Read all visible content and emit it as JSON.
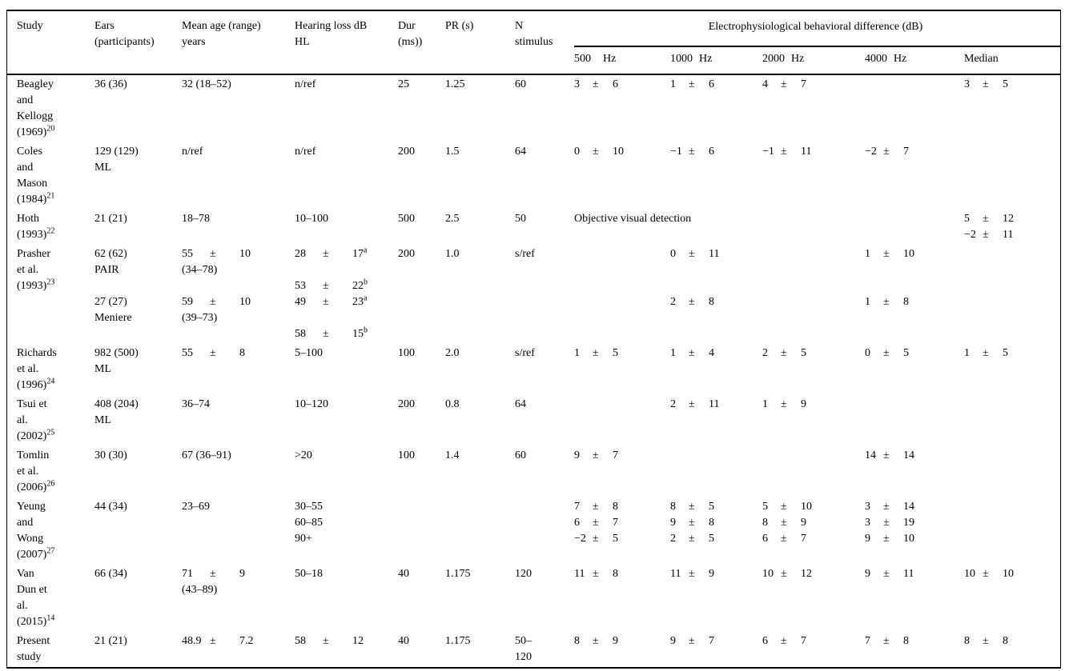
{
  "pm_sign": "±",
  "header": {
    "cols": [
      {
        "label": "Study"
      },
      {
        "label": "Ears\n(participants)"
      },
      {
        "label": "Mean age (range)\nyears"
      },
      {
        "label": "Hearing loss dB\nHL"
      },
      {
        "label": "Dur\n(ms))"
      },
      {
        "label": "PR (s)"
      },
      {
        "label": "N\nstimulus"
      }
    ],
    "group_label": "Electrophysiological behavioral difference (dB)",
    "sub_cols": [
      {
        "num": "500",
        "unit": "Hz"
      },
      {
        "num": "1000",
        "unit": "Hz"
      },
      {
        "num": "2000",
        "unit": "Hz"
      },
      {
        "num": "4000",
        "unit": "Hz"
      },
      {
        "label": "Median"
      }
    ]
  },
  "rows": [
    {
      "study": {
        "text": "Beagley\nand\nKellogg\n(1969)",
        "sup": "20"
      },
      "ears": [
        "36 (36)"
      ],
      "age": [
        "32 (18–52)"
      ],
      "hl": [
        "n/ref"
      ],
      "dur": [
        "25"
      ],
      "pr": [
        "1.25"
      ],
      "n": [
        "60"
      ],
      "f500": [
        {
          "v": "3",
          "s": "6"
        }
      ],
      "f1000": [
        {
          "v": "1",
          "s": "6"
        }
      ],
      "f2000": [
        {
          "v": "4",
          "s": "7"
        }
      ],
      "f4000": [],
      "median": [
        {
          "v": "3",
          "s": "5"
        }
      ]
    },
    {
      "study": {
        "text": "Coles\nand\nMason\n(1984)",
        "sup": "21"
      },
      "ears": [
        "129 (129)",
        "ML"
      ],
      "age": [
        "n/ref"
      ],
      "hl": [
        "n/ref"
      ],
      "dur": [
        "200"
      ],
      "pr": [
        "1.5"
      ],
      "n": [
        "64"
      ],
      "f500": [
        {
          "v": "0",
          "s": "10"
        }
      ],
      "f1000": [
        {
          "v": "−1",
          "s": "6"
        }
      ],
      "f2000": [
        {
          "v": "−1",
          "s": "11"
        }
      ],
      "f4000": [
        {
          "v": "−2",
          "s": "7"
        }
      ],
      "median": []
    },
    {
      "study": {
        "text": "Hoth\n(1993)",
        "sup": "22"
      },
      "ears": [
        "21 (21)"
      ],
      "age": [
        "18–78"
      ],
      "hl": [
        "10–100"
      ],
      "dur": [
        "500"
      ],
      "pr": [
        "2.5"
      ],
      "n": [
        "50"
      ],
      "electro_span": "Objective visual detection",
      "median": [
        {
          "v": "5",
          "s": "12"
        },
        {
          "v": "−2",
          "s": "11"
        }
      ]
    },
    {
      "study": {
        "text": "Prasher\net al.\n(1993)",
        "sup": "23"
      },
      "ears": [
        "62 (62)",
        "PAIR",
        "",
        "27 (27)",
        "Meniere"
      ],
      "age": [
        {
          "v": "55",
          "s": "10"
        },
        "(34–78)",
        "",
        {
          "v": "59",
          "s": "10"
        },
        "(39–73)"
      ],
      "hl": [
        {
          "v": "28",
          "s": "17",
          "sup": "a"
        },
        "",
        {
          "v": "53",
          "s": "22",
          "sup": "b"
        },
        {
          "v": "49",
          "s": "23",
          "sup": "a"
        },
        "",
        {
          "v": "58",
          "s": "15",
          "sup": "b"
        }
      ],
      "dur": [
        "200"
      ],
      "pr": [
        "1.0"
      ],
      "n": [
        "s/ref"
      ],
      "f500": [],
      "f1000": [
        {
          "v": "0",
          "s": "11"
        },
        "",
        "",
        {
          "v": "2",
          "s": "8"
        }
      ],
      "f2000": [],
      "f4000": [
        {
          "v": "1",
          "s": "10"
        },
        "",
        "",
        {
          "v": "1",
          "s": "8"
        }
      ],
      "median": []
    },
    {
      "study": {
        "text": "Richards\net al.\n(1996)",
        "sup": "24"
      },
      "ears": [
        "982 (500)",
        "ML"
      ],
      "age": [
        {
          "v": "55",
          "s": "8"
        }
      ],
      "hl": [
        "5–100"
      ],
      "dur": [
        "100"
      ],
      "pr": [
        "2.0"
      ],
      "n": [
        "s/ref"
      ],
      "f500": [
        {
          "v": "1",
          "s": "5"
        }
      ],
      "f1000": [
        {
          "v": "1",
          "s": "4"
        }
      ],
      "f2000": [
        {
          "v": "2",
          "s": "5"
        }
      ],
      "f4000": [
        {
          "v": "0",
          "s": "5"
        }
      ],
      "median": [
        {
          "v": "1",
          "s": "5"
        }
      ]
    },
    {
      "study": {
        "text": "Tsui et\nal.\n(2002)",
        "sup": "25"
      },
      "ears": [
        "408 (204)",
        "ML"
      ],
      "age": [
        "36–74"
      ],
      "hl": [
        "10–120"
      ],
      "dur": [
        "200"
      ],
      "pr": [
        "0.8"
      ],
      "n": [
        "64"
      ],
      "f500": [],
      "f1000": [
        {
          "v": "2",
          "s": "11"
        }
      ],
      "f2000": [
        {
          "v": "1",
          "s": "9"
        }
      ],
      "f4000": [],
      "median": []
    },
    {
      "study": {
        "text": "Tomlin\net al.\n(2006)",
        "sup": "26"
      },
      "ears": [
        "30 (30)"
      ],
      "age": [
        "67 (36–91)"
      ],
      "hl": [
        ">20"
      ],
      "dur": [
        "100"
      ],
      "pr": [
        "1.4"
      ],
      "n": [
        "60"
      ],
      "f500": [
        {
          "v": "9",
          "s": "7"
        }
      ],
      "f1000": [],
      "f2000": [],
      "f4000": [
        {
          "v": "14",
          "s": "14"
        }
      ],
      "median": []
    },
    {
      "study": {
        "text": "Yeung\nand\nWong\n(2007)",
        "sup": "27"
      },
      "ears": [
        "44 (34)"
      ],
      "age": [
        "23–69"
      ],
      "hl": [
        "30–55",
        "60–85",
        "90+"
      ],
      "dur": [],
      "pr": [],
      "n": [],
      "f500": [
        {
          "v": "7",
          "s": "8"
        },
        {
          "v": "6",
          "s": "7"
        },
        {
          "v": "−2",
          "s": "5"
        }
      ],
      "f1000": [
        {
          "v": "8",
          "s": "5"
        },
        {
          "v": "9",
          "s": "8"
        },
        {
          "v": "2",
          "s": "5"
        }
      ],
      "f2000": [
        {
          "v": "5",
          "s": "10"
        },
        {
          "v": "8",
          "s": "9"
        },
        {
          "v": "6",
          "s": "7"
        }
      ],
      "f4000": [
        {
          "v": "3",
          "s": "14"
        },
        {
          "v": "3",
          "s": "19"
        },
        {
          "v": "9",
          "s": "10"
        }
      ],
      "median": []
    },
    {
      "study": {
        "text": "Van\nDun et\nal.\n(2015)",
        "sup": "14"
      },
      "ears": [
        "66 (34)"
      ],
      "age": [
        {
          "v": "71",
          "s": "9"
        },
        "(43–89)"
      ],
      "hl": [
        "50–18"
      ],
      "dur": [
        "40"
      ],
      "pr": [
        "1.175"
      ],
      "n": [
        "120"
      ],
      "f500": [
        {
          "v": "11",
          "s": "8"
        }
      ],
      "f1000": [
        {
          "v": "11",
          "s": "9"
        }
      ],
      "f2000": [
        {
          "v": "10",
          "s": "12"
        }
      ],
      "f4000": [
        {
          "v": "9",
          "s": "11"
        }
      ],
      "median": [
        {
          "v": "10",
          "s": "10"
        }
      ]
    },
    {
      "study": {
        "text": "Present\nstudy"
      },
      "ears": [
        "21 (21)"
      ],
      "age": [
        {
          "v": "48.9",
          "s": "7.2"
        }
      ],
      "hl": [
        {
          "v": "58",
          "s": "12"
        }
      ],
      "dur": [
        "40"
      ],
      "pr": [
        "1.175"
      ],
      "n": [
        "50–",
        "120"
      ],
      "f500": [
        {
          "v": "8",
          "s": "9"
        }
      ],
      "f1000": [
        {
          "v": "9",
          "s": "7"
        }
      ],
      "f2000": [
        {
          "v": "6",
          "s": "7"
        }
      ],
      "f4000": [
        {
          "v": "7",
          "s": "8"
        }
      ],
      "median": [
        {
          "v": "8",
          "s": "8"
        }
      ]
    }
  ]
}
